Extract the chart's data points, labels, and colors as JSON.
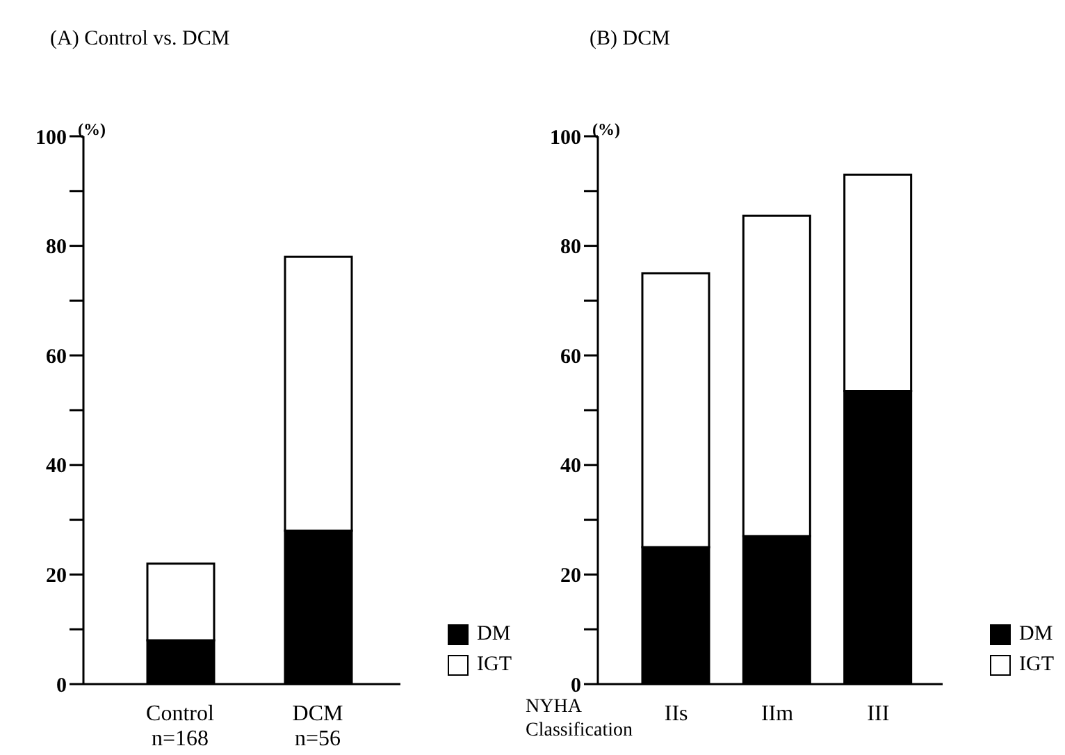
{
  "chart_data": [
    {
      "type": "bar",
      "title": "(A) Control vs. DCM",
      "ylabel": "(%)",
      "categories": [
        "Control\nn=168",
        "DCM\nn=56"
      ],
      "stacked": true,
      "legend": "bottom right",
      "ylim": [
        0,
        100
      ],
      "yticks": [
        0,
        {
          "value": 10,
          "label": null
        },
        20,
        {
          "value": 30,
          "label": null
        },
        40,
        {
          "value": 50,
          "label": null
        },
        60,
        {
          "value": 70,
          "label": null
        },
        80,
        {
          "value": 90,
          "label": null
        },
        100
      ],
      "series": [
        {
          "name": "DM",
          "color": "#000000",
          "values": [
            8,
            28
          ]
        },
        {
          "name": "IGT",
          "color": "#ffffff",
          "values": [
            14,
            50
          ]
        }
      ]
    },
    {
      "type": "bar",
      "title": "(B) DCM",
      "ylabel": "(%)",
      "xlabel": "NYHA Classification",
      "categories": [
        "IIs",
        "IIm",
        "III"
      ],
      "stacked": true,
      "legend": "bottom right",
      "ylim": [
        0,
        100
      ],
      "yticks": [
        0,
        {
          "value": 10,
          "label": null
        },
        20,
        {
          "value": 30,
          "label": null
        },
        40,
        {
          "value": 50,
          "label": null
        },
        60,
        {
          "value": 70,
          "label": null
        },
        80,
        {
          "value": 90,
          "label": null
        },
        100
      ],
      "series": [
        {
          "name": "DM",
          "color": "#000000",
          "values": [
            25,
            27,
            53.5
          ]
        },
        {
          "name": "IGT",
          "color": "#ffffff",
          "values": [
            50,
            58.5,
            39.5
          ]
        }
      ]
    }
  ]
}
